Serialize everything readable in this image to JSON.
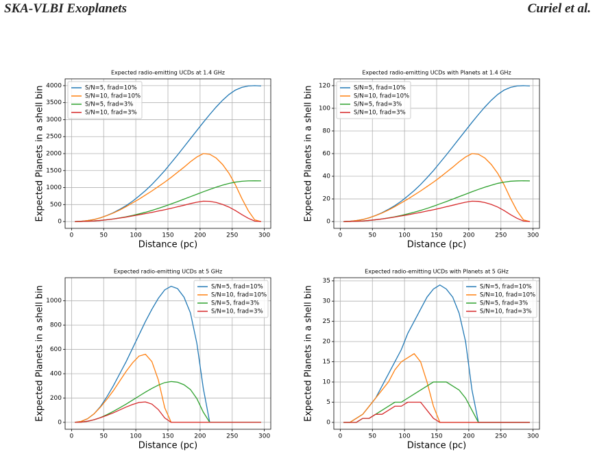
{
  "header": {
    "title": "SKA-VLBI Exoplanets",
    "authors": "Curiel et al."
  },
  "chart_data": [
    {
      "type": "line",
      "title": "Expected radio-emitting UCDs at 1.4 GHz",
      "xlabel": "Distance (pc)",
      "ylabel": "Expected Planets in a shell bin",
      "x": [
        5,
        15,
        25,
        35,
        45,
        55,
        65,
        75,
        85,
        95,
        105,
        115,
        125,
        135,
        145,
        155,
        165,
        175,
        185,
        195,
        205,
        215,
        225,
        235,
        245,
        255,
        265,
        275,
        285,
        295
      ],
      "xlim": [
        -10,
        310
      ],
      "xticks": [
        0,
        50,
        100,
        150,
        200,
        250,
        300
      ],
      "ylim": [
        -200,
        4200
      ],
      "yticks": [
        0,
        500,
        1000,
        1500,
        2000,
        2500,
        3000,
        3500,
        4000
      ],
      "grid": true,
      "legend": "upper left",
      "series": [
        {
          "name": "S/N=5, frad=10%",
          "color": "#1f77b4",
          "values": [
            0,
            10,
            30,
            60,
            110,
            180,
            260,
            360,
            470,
            600,
            750,
            910,
            1090,
            1290,
            1500,
            1730,
            1960,
            2200,
            2440,
            2680,
            2920,
            3150,
            3370,
            3570,
            3740,
            3870,
            3950,
            3990,
            4000,
            3990
          ]
        },
        {
          "name": "S/N=10, frad=10%",
          "color": "#ff7f0e",
          "values": [
            0,
            10,
            30,
            60,
            110,
            175,
            250,
            340,
            440,
            550,
            660,
            780,
            900,
            1030,
            1160,
            1300,
            1450,
            1600,
            1760,
            1900,
            2000,
            1980,
            1870,
            1680,
            1420,
            1080,
            680,
            320,
            50,
            0
          ]
        },
        {
          "name": "S/N=5, frad=3%",
          "color": "#2ca02c",
          "values": [
            0,
            3,
            9,
            18,
            33,
            54,
            78,
            108,
            141,
            180,
            225,
            273,
            327,
            387,
            450,
            519,
            588,
            660,
            732,
            804,
            876,
            945,
            1011,
            1071,
            1122,
            1161,
            1185,
            1197,
            1200,
            1197
          ]
        },
        {
          "name": "S/N=10, frad=3%",
          "color": "#d62728",
          "values": [
            0,
            3,
            9,
            18,
            33,
            53,
            75,
            102,
            132,
            165,
            198,
            234,
            270,
            309,
            348,
            390,
            435,
            480,
            528,
            570,
            600,
            594,
            561,
            504,
            426,
            324,
            204,
            96,
            15,
            0
          ]
        }
      ]
    },
    {
      "type": "line",
      "title": "Expected radio-emitting UCDs with Planets at 1.4 GHz",
      "xlabel": "Distance (pc)",
      "ylabel": "Expected Planets in a shell bin",
      "x": [
        5,
        15,
        25,
        35,
        45,
        55,
        65,
        75,
        85,
        95,
        105,
        115,
        125,
        135,
        145,
        155,
        165,
        175,
        185,
        195,
        205,
        215,
        225,
        235,
        245,
        255,
        265,
        275,
        285,
        295
      ],
      "xlim": [
        -10,
        310
      ],
      "xticks": [
        0,
        50,
        100,
        150,
        200,
        250,
        300
      ],
      "ylim": [
        -6,
        126
      ],
      "yticks": [
        0,
        20,
        40,
        60,
        80,
        100,
        120
      ],
      "grid": true,
      "legend": "upper left",
      "series": [
        {
          "name": "S/N=5, frad=10%",
          "color": "#1f77b4",
          "values": [
            0,
            0.3,
            0.9,
            1.8,
            3.3,
            5.4,
            7.8,
            10.8,
            14.1,
            18,
            22.5,
            27.3,
            32.7,
            38.7,
            45,
            51.9,
            58.8,
            66,
            73.2,
            80.4,
            87.6,
            94.5,
            101.1,
            107.1,
            112.2,
            116.1,
            118.5,
            119.7,
            120,
            119.7
          ]
        },
        {
          "name": "S/N=10, frad=10%",
          "color": "#ff7f0e",
          "values": [
            0,
            0.3,
            0.9,
            1.8,
            3.3,
            5.3,
            7.5,
            10.2,
            13.2,
            16.5,
            19.8,
            23.4,
            27,
            30.9,
            34.8,
            39,
            43.5,
            48,
            52.8,
            57,
            60,
            59.4,
            56.1,
            50.4,
            42.6,
            32.4,
            20.4,
            9.6,
            1.5,
            0
          ]
        },
        {
          "name": "S/N=5, frad=3%",
          "color": "#2ca02c",
          "values": [
            0,
            0.1,
            0.3,
            0.5,
            1,
            1.6,
            2.3,
            3.2,
            4.2,
            5.4,
            6.8,
            8.2,
            9.8,
            11.6,
            13.5,
            15.6,
            17.6,
            19.8,
            22,
            24.1,
            26.3,
            28.4,
            30.3,
            32.1,
            33.7,
            34.8,
            35.6,
            35.9,
            36,
            35.9
          ]
        },
        {
          "name": "S/N=10, frad=3%",
          "color": "#d62728",
          "values": [
            0,
            0.1,
            0.3,
            0.5,
            1,
            1.6,
            2.3,
            3.1,
            4,
            5,
            5.9,
            7,
            8.1,
            9.3,
            10.4,
            11.7,
            13.1,
            14.4,
            15.8,
            17.1,
            18,
            17.8,
            16.8,
            15.1,
            12.8,
            9.7,
            6.1,
            2.9,
            0.5,
            0
          ]
        }
      ]
    },
    {
      "type": "line",
      "title": "Expected radio-emitting UCDs at 5 GHz",
      "xlabel": "Distance (pc)",
      "ylabel": "Expected Planets in a shell bin",
      "x": [
        5,
        15,
        25,
        35,
        45,
        55,
        65,
        75,
        85,
        95,
        105,
        115,
        125,
        135,
        145,
        155,
        165,
        175,
        185,
        195,
        205,
        215,
        225,
        235,
        245,
        255,
        265,
        275,
        285,
        295
      ],
      "xlim": [
        -10,
        310
      ],
      "xticks": [
        0,
        50,
        100,
        150,
        200,
        250,
        300
      ],
      "ylim": [
        -57,
        1190
      ],
      "yticks": [
        0,
        200,
        400,
        600,
        800,
        1000
      ],
      "grid": true,
      "legend": "upper right",
      "series": [
        {
          "name": "S/N=5, frad=10%",
          "color": "#1f77b4",
          "values": [
            0,
            8,
            30,
            70,
            130,
            210,
            300,
            400,
            500,
            610,
            720,
            830,
            930,
            1020,
            1090,
            1120,
            1100,
            1030,
            900,
            650,
            280,
            0,
            0,
            0,
            0,
            0,
            0,
            0,
            0,
            0
          ]
        },
        {
          "name": "S/N=10, frad=10%",
          "color": "#ff7f0e",
          "values": [
            0,
            8,
            30,
            70,
            125,
            190,
            260,
            340,
            420,
            490,
            545,
            560,
            500,
            350,
            120,
            0,
            0,
            0,
            0,
            0,
            0,
            0,
            0,
            0,
            0,
            0,
            0,
            0,
            0,
            0
          ]
        },
        {
          "name": "S/N=5, frad=3%",
          "color": "#2ca02c",
          "values": [
            0,
            2,
            9,
            21,
            39,
            63,
            90,
            120,
            150,
            183,
            216,
            249,
            279,
            306,
            327,
            336,
            330,
            309,
            270,
            195,
            84,
            0,
            0,
            0,
            0,
            0,
            0,
            0,
            0,
            0
          ]
        },
        {
          "name": "S/N=10, frad=3%",
          "color": "#d62728",
          "values": [
            0,
            2,
            9,
            21,
            38,
            57,
            78,
            102,
            126,
            147,
            164,
            168,
            150,
            105,
            36,
            0,
            0,
            0,
            0,
            0,
            0,
            0,
            0,
            0,
            0,
            0,
            0,
            0,
            0,
            0
          ]
        }
      ]
    },
    {
      "type": "line",
      "title": "Expected radio-emitting UCDs with Planets at 5 GHz",
      "xlabel": "Distance (pc)",
      "ylabel": "Expected Planets in a shell bin",
      "x": [
        5,
        15,
        25,
        35,
        45,
        55,
        65,
        75,
        85,
        95,
        105,
        115,
        125,
        135,
        145,
        155,
        165,
        175,
        185,
        195,
        205,
        215,
        225,
        235,
        245,
        255,
        265,
        275,
        285,
        295
      ],
      "xlim": [
        -10,
        310
      ],
      "xticks": [
        0,
        50,
        100,
        150,
        200,
        250,
        300
      ],
      "ylim": [
        -1.7,
        35.8
      ],
      "yticks": [
        0,
        5,
        10,
        15,
        20,
        25,
        30,
        35
      ],
      "grid": true,
      "legend": "upper right",
      "series": [
        {
          "name": "S/N=5, frad=10%",
          "color": "#1f77b4",
          "values": [
            0,
            0,
            1,
            2,
            4,
            6,
            9,
            12,
            15,
            18,
            22,
            25,
            28,
            31,
            33,
            34,
            33,
            31,
            27,
            20,
            8,
            0,
            0,
            0,
            0,
            0,
            0,
            0,
            0,
            0
          ]
        },
        {
          "name": "S/N=10, frad=10%",
          "color": "#ff7f0e",
          "values": [
            0,
            0,
            1,
            2,
            4,
            6,
            8,
            10,
            13,
            15,
            16,
            17,
            15,
            10,
            4,
            0,
            0,
            0,
            0,
            0,
            0,
            0,
            0,
            0,
            0,
            0,
            0,
            0,
            0,
            0
          ]
        },
        {
          "name": "S/N=5, frad=3%",
          "color": "#2ca02c",
          "values": [
            0,
            0,
            0,
            1,
            1,
            2,
            3,
            4,
            5,
            5,
            6,
            7,
            8,
            9,
            10,
            10,
            10,
            9,
            8,
            6,
            3,
            0,
            0,
            0,
            0,
            0,
            0,
            0,
            0,
            0
          ]
        },
        {
          "name": "S/N=10, frad=3%",
          "color": "#d62728",
          "values": [
            0,
            0,
            0,
            1,
            1,
            2,
            2,
            3,
            4,
            4,
            5,
            5,
            5,
            3,
            1,
            0,
            0,
            0,
            0,
            0,
            0,
            0,
            0,
            0,
            0,
            0,
            0,
            0,
            0,
            0
          ]
        }
      ]
    }
  ]
}
